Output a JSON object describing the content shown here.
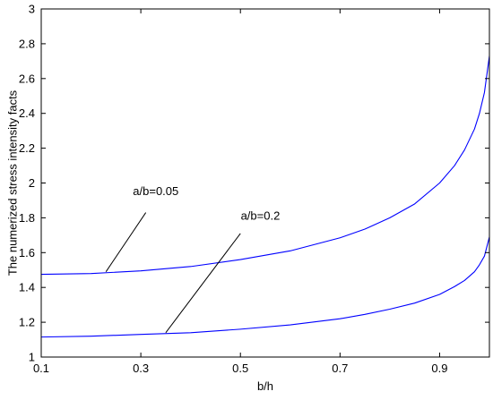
{
  "chart_data": {
    "type": "line",
    "xlabel": "b/h",
    "ylabel": "The numerized stress intensity facts",
    "xlim": [
      0.1,
      1.0
    ],
    "ylim": [
      1.0,
      3.0
    ],
    "xticks": [
      0.1,
      0.3,
      0.5,
      0.7,
      0.9
    ],
    "yticks": [
      1,
      1.2,
      1.4,
      1.6,
      1.8,
      2,
      2.2,
      2.4,
      2.6,
      2.8,
      3
    ],
    "xtick_labels": [
      "0.1",
      "0.3",
      "0.5",
      "0.7",
      "0.9"
    ],
    "ytick_labels": [
      "1",
      "1.2",
      "1.4",
      "1.6",
      "1.8",
      "2",
      "2.2",
      "2.4",
      "2.6",
      "2.8",
      "3"
    ],
    "grid": false,
    "series_color": "#0000ff",
    "series": [
      {
        "x": [
          0.1,
          0.2,
          0.3,
          0.4,
          0.5,
          0.6,
          0.7,
          0.75,
          0.8,
          0.85,
          0.9,
          0.93,
          0.95,
          0.97,
          0.98,
          0.99,
          1.0
        ],
        "y": [
          1.475,
          1.48,
          1.495,
          1.52,
          1.56,
          1.61,
          1.685,
          1.735,
          1.8,
          1.88,
          2.0,
          2.1,
          2.19,
          2.31,
          2.4,
          2.52,
          2.73
        ]
      },
      {
        "x": [
          0.1,
          0.2,
          0.3,
          0.4,
          0.5,
          0.6,
          0.7,
          0.75,
          0.8,
          0.85,
          0.9,
          0.93,
          0.95,
          0.97,
          0.98,
          0.99,
          1.0
        ],
        "y": [
          1.115,
          1.12,
          1.13,
          1.14,
          1.16,
          1.185,
          1.22,
          1.245,
          1.275,
          1.31,
          1.36,
          1.405,
          1.44,
          1.49,
          1.53,
          1.58,
          1.69
        ]
      }
    ],
    "annotations": [
      {
        "text": "a/b=0.05",
        "text_x": 0.33,
        "text_y": 1.93,
        "line_from": [
          0.31,
          1.83
        ],
        "line_to": [
          0.23,
          1.49
        ]
      },
      {
        "text": "a/b=0.2",
        "text_x": 0.54,
        "text_y": 1.79,
        "line_from": [
          0.5,
          1.71
        ],
        "line_to": [
          0.35,
          1.14
        ]
      }
    ]
  }
}
